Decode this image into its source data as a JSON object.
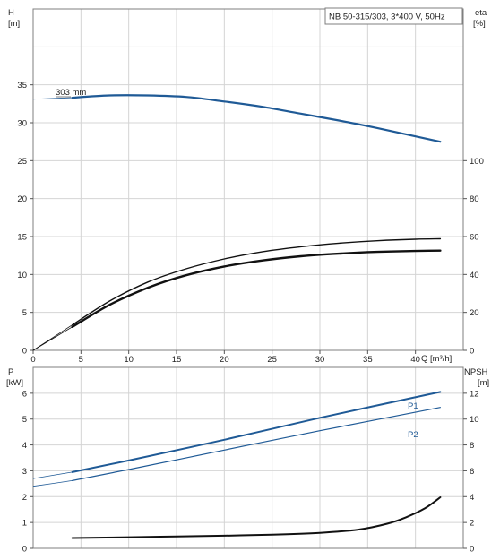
{
  "chart_data": [
    {
      "type": "line",
      "title": "NB 50-315/303, 3*400 V, 50Hz",
      "xlabel": "Q [m³/h]",
      "ylabel_left_name": "H",
      "ylabel_left_unit": "[m]",
      "ylabel_right_name": "eta",
      "ylabel_right_unit": "[%]",
      "xlim": [
        0,
        45
      ],
      "ylim_left": [
        0,
        45
      ],
      "ylim_right": [
        0,
        180
      ],
      "x_ticks": [
        0,
        5,
        10,
        15,
        20,
        25,
        30,
        35,
        40
      ],
      "y_left_ticks": [
        0,
        5,
        10,
        15,
        20,
        25,
        30,
        35
      ],
      "y_right_ticks": [
        0,
        20,
        40,
        60,
        80,
        100
      ],
      "grid": true,
      "series": [
        {
          "name": "303 mm",
          "axis": "left",
          "color": "#1f5a96",
          "x": [
            4.1,
            8,
            12,
            16,
            20,
            24,
            28,
            32,
            36,
            40,
            42.6
          ],
          "y": [
            33.3,
            33.6,
            33.6,
            33.4,
            32.8,
            32.1,
            31.2,
            30.3,
            29.3,
            28.2,
            27.5
          ]
        },
        {
          "axis": "right",
          "color": "#111111",
          "x": [
            0,
            4.1,
            8,
            12,
            16,
            20,
            24,
            28,
            32,
            36,
            40,
            42.6
          ],
          "y": [
            0,
            12.4,
            24,
            33,
            39.6,
            44.2,
            47.4,
            49.6,
            51,
            51.9,
            52.4,
            52.6
          ]
        },
        {
          "axis": "right",
          "color": "#111111",
          "x": [
            0,
            4.1,
            8,
            12,
            16,
            20,
            24,
            28,
            32,
            36,
            40,
            42.6
          ],
          "y": [
            0,
            13.4,
            26,
            36,
            43,
            48.2,
            52,
            54.6,
            56.5,
            57.8,
            58.6,
            58.8
          ]
        }
      ],
      "curve_label": "303 mm"
    },
    {
      "type": "line",
      "xlim": [
        0,
        45
      ],
      "ylabel_left_name": "P",
      "ylabel_left_unit": "[kW]",
      "ylabel_right_name": "NPSH",
      "ylabel_right_unit": "[m]",
      "ylim_left": [
        0,
        7
      ],
      "ylim_right": [
        0,
        14
      ],
      "y_left_ticks": [
        0,
        1,
        2,
        3,
        4,
        5,
        6
      ],
      "y_right_ticks": [
        0,
        2,
        4,
        6,
        8,
        10,
        12
      ],
      "grid": true,
      "series": [
        {
          "name": "P1",
          "axis": "left",
          "color": "#1f5a96",
          "x": [
            0,
            4.1,
            10,
            20,
            30,
            42.6
          ],
          "y": [
            2.7,
            2.95,
            3.4,
            4.2,
            5.05,
            6.05
          ]
        },
        {
          "name": "P2",
          "axis": "left",
          "color": "#1f5a96",
          "x": [
            0,
            4.1,
            10,
            20,
            30,
            42.6
          ],
          "y": [
            2.4,
            2.62,
            3.05,
            3.8,
            4.55,
            5.45
          ]
        },
        {
          "axis": "right",
          "color": "#111111",
          "x": [
            0,
            4.1,
            10,
            15,
            20,
            25,
            30,
            34,
            37,
            39,
            41,
            42.6
          ],
          "y": [
            0.8,
            0.8,
            0.86,
            0.92,
            0.98,
            1.06,
            1.2,
            1.45,
            1.9,
            2.4,
            3.1,
            3.95
          ]
        }
      ]
    }
  ]
}
